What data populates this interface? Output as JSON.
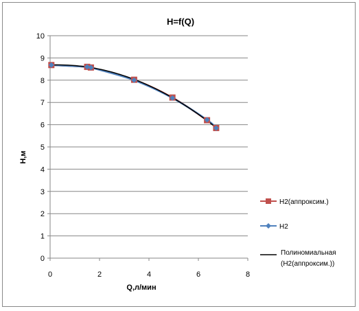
{
  "chart_data": {
    "type": "scatter",
    "title": "H=f(Q)",
    "xlabel": "Q,л/мин",
    "ylabel": "H,м",
    "xlim": [
      0,
      8
    ],
    "ylim": [
      0,
      10
    ],
    "xticks": [
      "0",
      "2",
      "4",
      "6",
      "8"
    ],
    "yticks": [
      "0",
      "1",
      "2",
      "3",
      "4",
      "5",
      "6",
      "7",
      "8",
      "9",
      "10"
    ],
    "grid": "horizontal",
    "legend_position": "right",
    "series": [
      {
        "name": "H2(аппроксим.)",
        "color": "#c0504d",
        "marker": "square",
        "x": [
          0.05,
          1.5,
          1.65,
          3.4,
          4.95,
          6.35,
          6.72
        ],
        "y": [
          8.68,
          8.6,
          8.57,
          8.02,
          7.22,
          6.2,
          5.85
        ]
      },
      {
        "name": "H2",
        "color": "#4f81bd",
        "marker": "diamond",
        "x": [
          0.05,
          1.5,
          1.65,
          3.4,
          4.95,
          6.35,
          6.72
        ],
        "y": [
          8.68,
          8.6,
          8.57,
          8.0,
          7.2,
          6.22,
          5.85
        ]
      },
      {
        "name": "Полиномиальная (H2(аппроксим.))",
        "name_lines": [
          "Полиномиальная",
          "(H2(аппроксим.))"
        ],
        "color": "#000000",
        "marker": "none",
        "trend": "polynomial"
      }
    ]
  }
}
